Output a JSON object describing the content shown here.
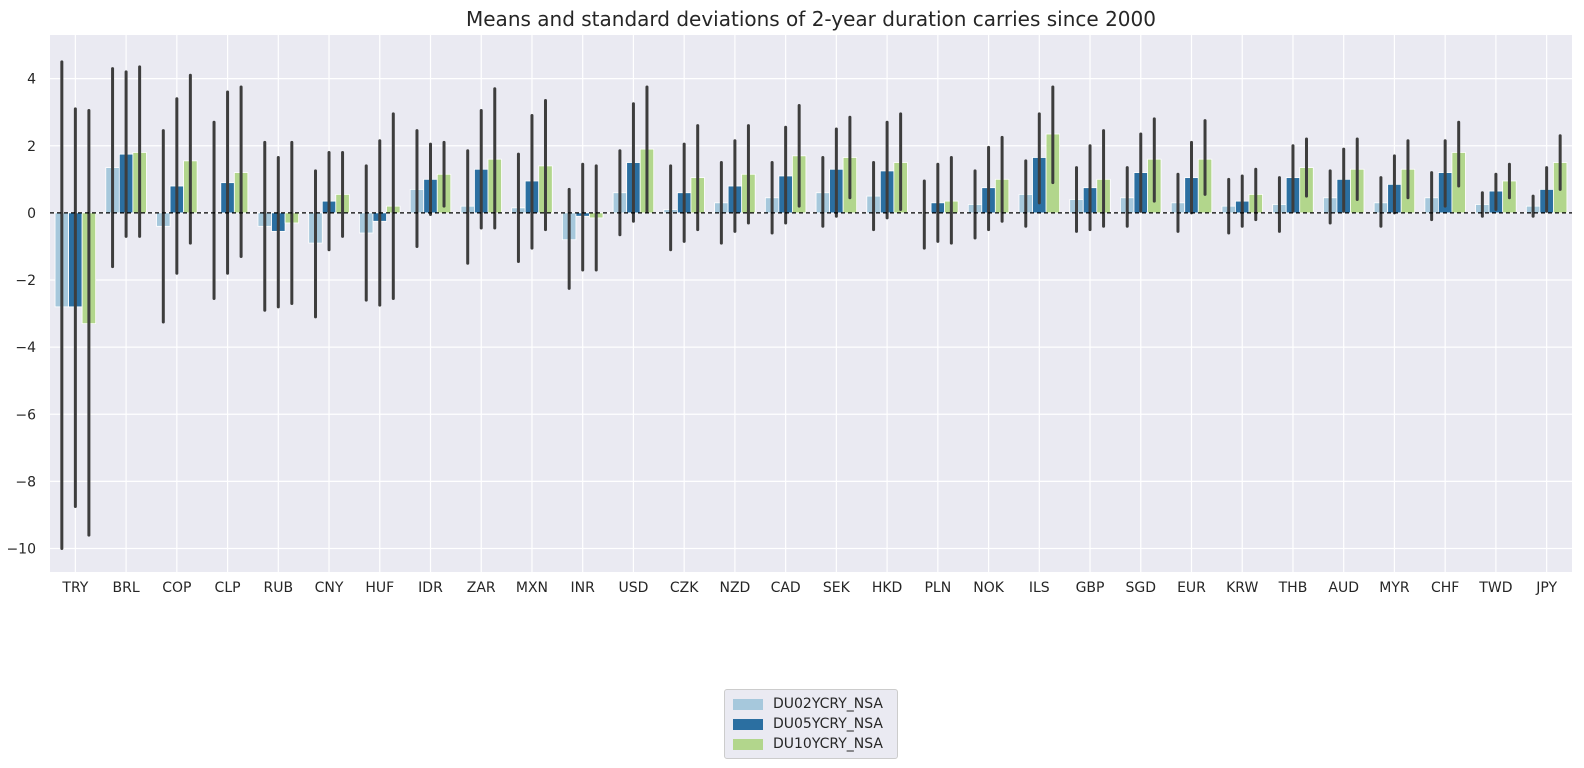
{
  "chart_data": {
    "type": "bar",
    "title": "Means and standard deviations of 2-year duration carries since 2000",
    "xlabel": "",
    "ylabel": "",
    "ylim": [
      -10.7,
      5.3
    ],
    "yticks": [
      4,
      2,
      0,
      -2,
      -4,
      -6,
      -8,
      -10
    ],
    "ytick_labels": [
      "4",
      "2",
      "0",
      "−2",
      "−4",
      "−6",
      "−8",
      "−10"
    ],
    "grid": true,
    "legend_position": "bottom-center",
    "zero_line": true,
    "categories": [
      "TRY",
      "BRL",
      "COP",
      "CLP",
      "RUB",
      "CNY",
      "HUF",
      "IDR",
      "ZAR",
      "MXN",
      "INR",
      "USD",
      "CZK",
      "NZD",
      "CAD",
      "SEK",
      "HKD",
      "PLN",
      "NOK",
      "ILS",
      "GBP",
      "SGD",
      "EUR",
      "KRW",
      "THB",
      "AUD",
      "MYR",
      "CHF",
      "TWD",
      "JPY"
    ],
    "series": [
      {
        "name": "DU02YCRY_NSA",
        "color": "#a6c8dc",
        "values": [
          -2.8,
          1.35,
          -0.4,
          0.0,
          -0.4,
          -0.9,
          -0.6,
          0.7,
          0.2,
          0.15,
          -0.8,
          0.6,
          0.1,
          0.3,
          0.45,
          0.6,
          0.5,
          0.0,
          0.25,
          0.55,
          0.4,
          0.45,
          0.3,
          0.2,
          0.25,
          0.45,
          0.3,
          0.45,
          0.25,
          0.2
        ],
        "err_low": [
          -10.0,
          -1.6,
          -3.25,
          -2.55,
          -2.9,
          -3.1,
          -2.6,
          -1.0,
          -1.5,
          -1.45,
          -2.25,
          -0.65,
          -1.1,
          -0.9,
          -0.6,
          -0.4,
          -0.5,
          -1.05,
          -0.75,
          -0.4,
          -0.55,
          -0.4,
          -0.55,
          -0.6,
          -0.55,
          -0.3,
          -0.4,
          -0.2,
          -0.1,
          -0.1
        ],
        "err_high": [
          4.5,
          4.3,
          2.45,
          2.7,
          2.1,
          1.25,
          1.4,
          2.45,
          1.85,
          1.75,
          0.7,
          1.85,
          1.4,
          1.5,
          1.5,
          1.65,
          1.5,
          0.95,
          1.25,
          1.55,
          1.35,
          1.35,
          1.15,
          1.0,
          1.05,
          1.25,
          1.05,
          1.2,
          0.6,
          0.5
        ]
      },
      {
        "name": "DU05YCRY_NSA",
        "color": "#2b6fa1",
        "values": [
          -2.8,
          1.75,
          0.8,
          0.9,
          -0.55,
          0.35,
          -0.25,
          1.0,
          1.3,
          0.95,
          -0.1,
          1.5,
          0.6,
          0.8,
          1.1,
          1.3,
          1.25,
          0.3,
          0.75,
          1.65,
          0.75,
          1.2,
          1.05,
          0.35,
          1.05,
          1.0,
          0.85,
          1.2,
          0.65,
          0.7
        ],
        "err_low": [
          -8.75,
          -0.7,
          -1.8,
          -1.8,
          -2.8,
          -1.1,
          -2.75,
          -0.05,
          -0.45,
          -1.05,
          -1.7,
          -0.25,
          -0.85,
          -0.55,
          -0.3,
          -0.1,
          -0.15,
          -0.85,
          -0.5,
          0.3,
          -0.5,
          0.05,
          0.0,
          -0.4,
          0.05,
          0.05,
          0.0,
          0.2,
          0.1,
          0.05
        ],
        "err_high": [
          3.1,
          4.2,
          3.4,
          3.6,
          1.65,
          1.8,
          2.15,
          2.05,
          3.05,
          2.9,
          1.45,
          3.25,
          2.05,
          2.15,
          2.55,
          2.5,
          2.7,
          1.45,
          1.95,
          2.95,
          2.0,
          2.35,
          2.1,
          1.1,
          2.0,
          1.9,
          1.7,
          2.15,
          1.15,
          1.35
        ]
      },
      {
        "name": "DU10YCRY_NSA",
        "color": "#b2d68c",
        "values": [
          -3.3,
          1.8,
          1.55,
          1.2,
          -0.3,
          0.55,
          0.2,
          1.15,
          1.6,
          1.4,
          -0.15,
          1.9,
          1.05,
          1.15,
          1.7,
          1.65,
          1.5,
          0.35,
          1.0,
          2.35,
          1.0,
          1.6,
          1.6,
          0.55,
          1.35,
          1.3,
          1.3,
          1.8,
          0.95,
          1.5
        ],
        "err_low": [
          -9.6,
          -0.7,
          -0.9,
          -1.3,
          -2.7,
          -0.7,
          -2.55,
          0.2,
          -0.45,
          -0.5,
          -1.7,
          0.05,
          -0.5,
          -0.3,
          0.2,
          0.45,
          0.1,
          -0.9,
          -0.25,
          0.9,
          -0.4,
          0.35,
          0.55,
          -0.2,
          0.5,
          0.4,
          0.45,
          0.8,
          0.45,
          0.7
        ],
        "err_high": [
          3.05,
          4.35,
          4.1,
          3.75,
          2.1,
          1.8,
          2.95,
          2.1,
          3.7,
          3.35,
          1.4,
          3.75,
          2.6,
          2.6,
          3.2,
          2.85,
          2.95,
          1.65,
          2.25,
          3.75,
          2.45,
          2.8,
          2.75,
          1.3,
          2.2,
          2.2,
          2.15,
          2.7,
          1.45,
          2.3
        ]
      }
    ]
  }
}
